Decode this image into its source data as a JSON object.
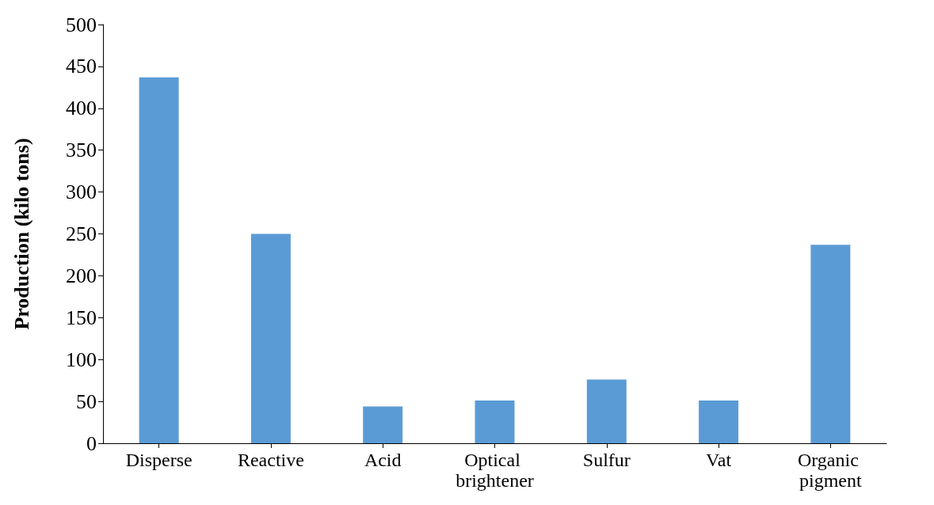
{
  "chart_data": {
    "type": "bar",
    "ylabel": "Production (kilo tons)",
    "categories": [
      "Disperse",
      "Reactive",
      "Acid",
      "Optical brightener",
      "Sulfur",
      "Vat",
      "Organic pigment"
    ],
    "values": [
      437,
      250,
      44,
      51,
      76,
      51,
      237
    ],
    "color": "#5b9bd5",
    "ylim": [
      0,
      500
    ],
    "yticks": [
      0,
      50,
      100,
      150,
      200,
      250,
      300,
      350,
      400,
      450,
      500
    ],
    "grid": false
  }
}
